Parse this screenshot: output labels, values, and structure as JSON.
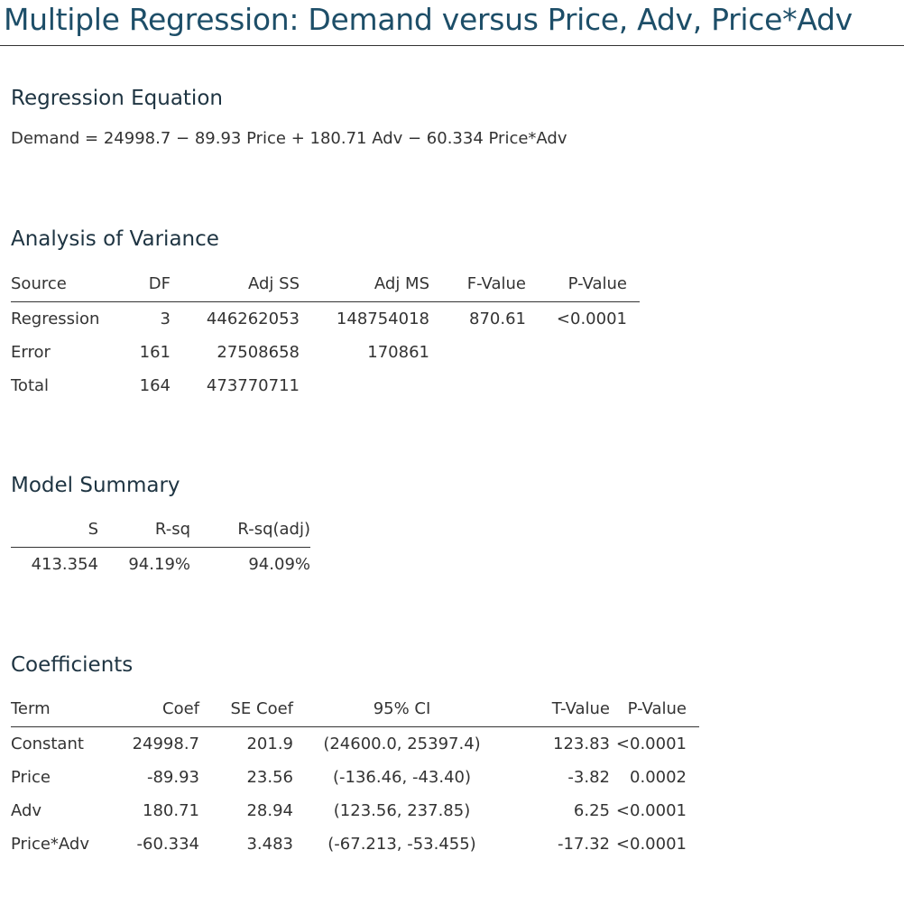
{
  "title": "Multiple Regression: Demand versus Price, Adv, Price*Adv",
  "regression_equation": {
    "heading": "Regression Equation",
    "equation": "Demand = 24998.7 − 89.93 Price + 180.71 Adv − 60.334 Price*Adv"
  },
  "anova": {
    "heading": "Analysis of Variance",
    "columns": [
      "Source",
      "DF",
      "Adj SS",
      "Adj MS",
      "F-Value",
      "P-Value"
    ],
    "rows": [
      [
        "Regression",
        "3",
        "446262053",
        "148754018",
        "870.61",
        "<0.0001"
      ],
      [
        "Error",
        "161",
        "27508658",
        "170861",
        "",
        ""
      ],
      [
        "Total",
        "164",
        "473770711",
        "",
        "",
        ""
      ]
    ]
  },
  "model_summary": {
    "heading": "Model Summary",
    "columns": [
      "S",
      "R-sq",
      "R-sq(adj)"
    ],
    "rows": [
      [
        "413.354",
        "94.19%",
        "94.09%"
      ]
    ]
  },
  "coefficients": {
    "heading": "Coefficients",
    "columns": [
      "Term",
      "Coef",
      "SE Coef",
      "95% CI",
      "T-Value",
      "P-Value"
    ],
    "rows": [
      [
        "Constant",
        "24998.7",
        "201.9",
        "(24600.0, 25397.4)",
        "123.83",
        "<0.0001"
      ],
      [
        "Price",
        "-89.93",
        "23.56",
        "(-136.46, -43.40)",
        "-3.82",
        "0.0002"
      ],
      [
        "Adv",
        "180.71",
        "28.94",
        "(123.56, 237.85)",
        "6.25",
        "<0.0001"
      ],
      [
        "Price*Adv",
        "-60.334",
        "3.483",
        "(-67.213, -53.455)",
        "-17.32",
        "<0.0001"
      ]
    ]
  },
  "colors": {
    "title": "#1d4e68",
    "text": "#333333"
  }
}
